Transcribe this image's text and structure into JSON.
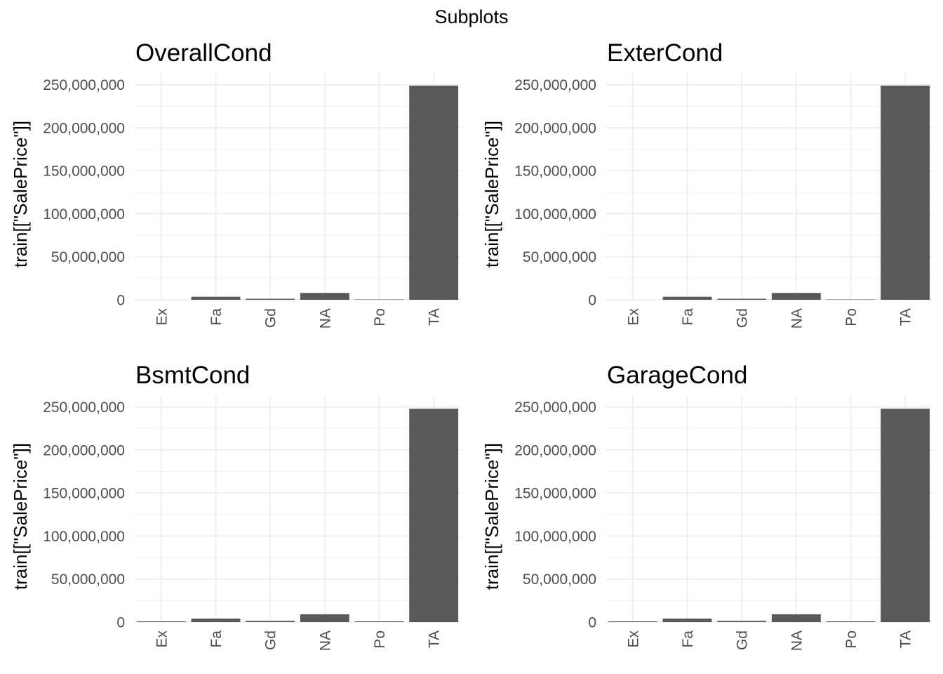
{
  "figure": {
    "title": "Subplots"
  },
  "chart_data": [
    {
      "type": "bar",
      "title": "OverallCond",
      "xlabel": "",
      "ylabel": "train[[\"SalePrice\"]]",
      "categories": [
        "Ex",
        "Fa",
        "Gd",
        "NA",
        "Po",
        "TA"
      ],
      "values": [
        0,
        3500000,
        1200000,
        8000000,
        400000,
        249000000
      ],
      "ylim": [
        0,
        262000000
      ],
      "yticks": [
        0,
        50000000,
        100000000,
        150000000,
        200000000,
        250000000
      ],
      "ytick_labels": [
        "0",
        "50,000,000",
        "100,000,000",
        "150,000,000",
        "200,000,000",
        "250,000,000"
      ],
      "grid": true,
      "bar_color": "#595959"
    },
    {
      "type": "bar",
      "title": "ExterCond",
      "xlabel": "",
      "ylabel": "train[[\"SalePrice\"]]",
      "categories": [
        "Ex",
        "Fa",
        "Gd",
        "NA",
        "Po",
        "TA"
      ],
      "values": [
        0,
        3500000,
        1200000,
        8000000,
        400000,
        249000000
      ],
      "ylim": [
        0,
        262000000
      ],
      "yticks": [
        0,
        50000000,
        100000000,
        150000000,
        200000000,
        250000000
      ],
      "ytick_labels": [
        "0",
        "50,000,000",
        "100,000,000",
        "150,000,000",
        "200,000,000",
        "250,000,000"
      ],
      "grid": true,
      "bar_color": "#595959"
    },
    {
      "type": "bar",
      "title": "BsmtCond",
      "xlabel": "",
      "ylabel": "train[[\"SalePrice\"]]",
      "categories": [
        "Ex",
        "Fa",
        "Gd",
        "NA",
        "Po",
        "TA"
      ],
      "values": [
        800000,
        4000000,
        1400000,
        9000000,
        800000,
        248000000
      ],
      "ylim": [
        0,
        262000000
      ],
      "yticks": [
        0,
        50000000,
        100000000,
        150000000,
        200000000,
        250000000
      ],
      "ytick_labels": [
        "0",
        "50,000,000",
        "100,000,000",
        "150,000,000",
        "200,000,000",
        "250,000,000"
      ],
      "grid": true,
      "bar_color": "#595959"
    },
    {
      "type": "bar",
      "title": "GarageCond",
      "xlabel": "",
      "ylabel": "train[[\"SalePrice\"]]",
      "categories": [
        "Ex",
        "Fa",
        "Gd",
        "NA",
        "Po",
        "TA"
      ],
      "values": [
        800000,
        4000000,
        1400000,
        9000000,
        800000,
        248000000
      ],
      "ylim": [
        0,
        262000000
      ],
      "yticks": [
        0,
        50000000,
        100000000,
        150000000,
        200000000,
        250000000
      ],
      "ytick_labels": [
        "0",
        "50,000,000",
        "100,000,000",
        "150,000,000",
        "200,000,000",
        "250,000,000"
      ],
      "grid": true,
      "bar_color": "#595959"
    }
  ]
}
